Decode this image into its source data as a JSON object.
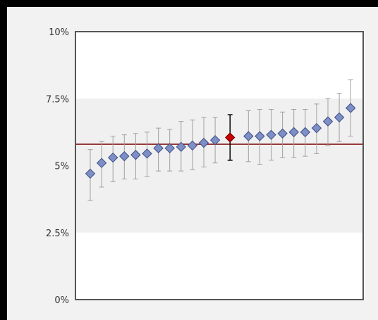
{
  "chart_data": {
    "type": "scatter",
    "title": "",
    "xlabel": "",
    "ylabel": "",
    "ylim": [
      0,
      10
    ],
    "y_unit": "%",
    "y_ticks": [
      "0%",
      "2.5%",
      "5%",
      "7.5%",
      "10%"
    ],
    "y_tick_values": [
      0,
      2.5,
      5,
      7.5,
      10
    ],
    "reference_line": 5.8,
    "highlight_index": 12,
    "points": [
      {
        "value": 4.7,
        "low": 3.7,
        "high": 5.6
      },
      {
        "value": 5.1,
        "low": 4.2,
        "high": 5.9
      },
      {
        "value": 5.3,
        "low": 4.4,
        "high": 6.1
      },
      {
        "value": 5.35,
        "low": 4.5,
        "high": 6.15
      },
      {
        "value": 5.4,
        "low": 4.5,
        "high": 6.2
      },
      {
        "value": 5.45,
        "low": 4.6,
        "high": 6.25
      },
      {
        "value": 5.65,
        "low": 4.8,
        "high": 6.4
      },
      {
        "value": 5.65,
        "low": 4.8,
        "high": 6.35
      },
      {
        "value": 5.7,
        "low": 4.8,
        "high": 6.65
      },
      {
        "value": 5.75,
        "low": 4.85,
        "high": 6.7
      },
      {
        "value": 5.85,
        "low": 4.95,
        "high": 6.8
      },
      {
        "value": 5.95,
        "low": 5.1,
        "high": 6.8
      },
      {
        "value": 6.05,
        "low": 5.2,
        "high": 6.9
      },
      {
        "value": 6.1,
        "low": 5.15,
        "high": 7.05
      },
      {
        "value": 6.1,
        "low": 5.05,
        "high": 7.1
      },
      {
        "value": 6.15,
        "low": 5.2,
        "high": 7.1
      },
      {
        "value": 6.2,
        "low": 5.3,
        "high": 7.0
      },
      {
        "value": 6.25,
        "low": 5.3,
        "high": 7.1
      },
      {
        "value": 6.25,
        "low": 5.35,
        "high": 7.1
      },
      {
        "value": 6.4,
        "low": 5.45,
        "high": 7.3
      },
      {
        "value": 6.65,
        "low": 5.75,
        "high": 7.5
      },
      {
        "value": 6.8,
        "low": 5.9,
        "high": 7.7
      },
      {
        "value": 7.15,
        "low": 6.1,
        "high": 8.2
      }
    ],
    "colors": {
      "point_fill": "#7d8fc4",
      "point_stroke": "#3d4f86",
      "highlight_fill": "#cc0000",
      "highlight_stroke": "#660000",
      "error_bar": "#a0a0a0",
      "highlight_error_bar": "#000000",
      "reference_line": "#8b1a1a",
      "band": "#f0f0f0",
      "plot_bg": "#ffffff",
      "frame_bg": "#f2f2f2",
      "axis": "#555555"
    }
  }
}
